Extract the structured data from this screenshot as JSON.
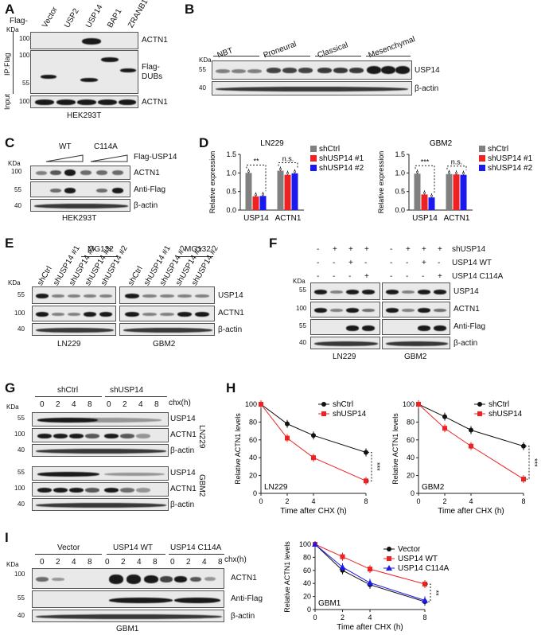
{
  "panels": {
    "A": {
      "label": "A",
      "flag_prefix": "Flag-",
      "lanes": [
        "Vector",
        "USP2",
        "USP14",
        "BAP1",
        "ZRANB1"
      ],
      "kda": "KDa",
      "side": [
        "IP:Flag",
        "Input"
      ],
      "rows": [
        "ACTN1",
        "Flag-\nDUBs",
        "ACTN1"
      ],
      "row_labels": {
        "r1": "ACTN1",
        "r2a": "Flag-",
        "r2b": "DUBs",
        "r3": "ACTN1"
      },
      "markers": {
        "m1": "100",
        "m2": "100",
        "m3": "55",
        "m4": "100"
      },
      "cell": "HEK293T"
    },
    "B": {
      "label": "B",
      "groups": [
        "NBT",
        "Proneural",
        "Classical",
        "Mesenchymal"
      ],
      "kda": "KDa",
      "markers": {
        "m1": "55",
        "m2": "40"
      },
      "rows": [
        "USP14",
        "β-actin"
      ]
    },
    "C": {
      "label": "C",
      "groups": [
        "WT",
        "C114A"
      ],
      "title": "Flag-USP14",
      "kda": "KDa",
      "markers": {
        "m1": "100",
        "m2": "55",
        "m3": "40"
      },
      "rows": [
        "ACTN1",
        "Anti-Flag",
        "β-actin"
      ],
      "cell": "HEK293T"
    },
    "D": {
      "label": "D"
    },
    "E": {
      "label": "E",
      "lanes_left": [
        "shCtrl",
        "shUSP14 #1",
        "shUSP14 #2",
        "shUSP14 #1",
        "shUSP14 #2"
      ],
      "lanes_right": [
        "shCtrl",
        "shUSP14 #1",
        "shUSP14 #2",
        "shUSP14 #1",
        "shUSP14 #2"
      ],
      "mg132": "MG132",
      "kda": "KDa",
      "markers": {
        "m1": "55",
        "m2": "100",
        "m3": "40"
      },
      "rows": [
        "USP14",
        "ACTN1",
        "β-actin"
      ],
      "cells": [
        "LN229",
        "GBM2"
      ]
    },
    "F": {
      "label": "F",
      "conditions": [
        "shUSP14",
        "USP14 WT",
        "USP14 C114A"
      ],
      "signs": [
        [
          "-",
          "+",
          "+",
          "+",
          "-",
          "+",
          "+",
          "+"
        ],
        [
          "-",
          "-",
          "+",
          "-",
          "-",
          "-",
          "+",
          "-"
        ],
        [
          "-",
          "-",
          "-",
          "+",
          "-",
          "-",
          "-",
          "+"
        ]
      ],
      "kda": "KDa",
      "markers": {
        "m1": "55",
        "m2": "100",
        "m3": "55",
        "m4": "40"
      },
      "rows": [
        "USP14",
        "ACTN1",
        "Anti-Flag",
        "β-actin"
      ],
      "cells": [
        "LN229",
        "GBM2"
      ]
    },
    "G": {
      "label": "G",
      "groups": [
        "shCtrl",
        "shUSP14"
      ],
      "chx": "chx(h)",
      "times": [
        "0",
        "2",
        "4",
        "8",
        "0",
        "2",
        "4",
        "8"
      ],
      "kda": "KDa",
      "markers": {
        "m1": "55",
        "m2": "100",
        "m3": "40",
        "m4": "55",
        "m5": "100",
        "m6": "40"
      },
      "rows": [
        "USP14",
        "ACTN1",
        "β-actin",
        "USP14",
        "ACTN1",
        "β-actin"
      ],
      "cells": [
        "LN229",
        "GBM2"
      ]
    },
    "H": {
      "label": "H"
    },
    "I": {
      "label": "I",
      "groups": [
        "Vector",
        "USP14 WT",
        "USP14 C114A"
      ],
      "chx": "chx(h)",
      "times": [
        "0",
        "2",
        "4",
        "8",
        "0",
        "2",
        "4",
        "8",
        "0",
        "2",
        "4",
        "8"
      ],
      "kda": "KDa",
      "markers": {
        "m1": "100",
        "m2": "55",
        "m3": "40"
      },
      "rows": [
        "ACTN1",
        "Anti-Flag",
        "β-actin"
      ],
      "cell": "GBM1"
    }
  },
  "chart_data": [
    {
      "id": "D-LN229",
      "type": "bar",
      "title": "LN229",
      "ylabel": "Relative expression",
      "categories": [
        "USP14",
        "ACTN1"
      ],
      "yticks": [
        "0.0",
        "0.5",
        "1.0",
        "1.5"
      ],
      "ylim": [
        0,
        1.5
      ],
      "series": [
        {
          "name": "shCtrl",
          "color": "#808080",
          "values": [
            1.0,
            1.06
          ]
        },
        {
          "name": "shUSP14 #1",
          "color": "#ee2222",
          "values": [
            0.37,
            0.95
          ]
        },
        {
          "name": "shUSP14 #2",
          "color": "#1a1aee",
          "values": [
            0.38,
            0.99
          ]
        }
      ],
      "sig": [
        "**",
        "n.s."
      ]
    },
    {
      "id": "D-GBM2",
      "type": "bar",
      "title": "GBM2",
      "ylabel": "Relative expression",
      "categories": [
        "USP14",
        "ACTN1"
      ],
      "yticks": [
        "0.0",
        "0.5",
        "1.0",
        "1.5"
      ],
      "ylim": [
        0,
        1.5
      ],
      "series": [
        {
          "name": "shCtrl",
          "color": "#808080",
          "values": [
            0.98,
            0.97
          ]
        },
        {
          "name": "shUSP14 #1",
          "color": "#ee2222",
          "values": [
            0.42,
            0.96
          ]
        },
        {
          "name": "shUSP14 #2",
          "color": "#1a1aee",
          "values": [
            0.34,
            0.95
          ]
        }
      ],
      "sig": [
        "***",
        "n.s."
      ]
    },
    {
      "id": "H-LN229",
      "type": "line",
      "annotation": "LN229",
      "xlabel": "Time after CHX (h)",
      "ylabel": "Relative ACTN1 levels",
      "x": [
        0,
        2,
        4,
        8
      ],
      "xticks": [
        "0",
        "2",
        "4",
        "8"
      ],
      "yticks": [
        "0",
        "20",
        "40",
        "60",
        "80",
        "100"
      ],
      "ylim": [
        0,
        100
      ],
      "series": [
        {
          "name": "shCtrl",
          "color": "#111111",
          "marker": "circle",
          "values": [
            100,
            78,
            65,
            46
          ]
        },
        {
          "name": "shUSP14",
          "color": "#ee2222",
          "marker": "square",
          "values": [
            100,
            62,
            40,
            14
          ]
        }
      ],
      "sig": "***"
    },
    {
      "id": "H-GBM2",
      "type": "line",
      "annotation": "GBM2",
      "xlabel": "Time after CHX (h)",
      "ylabel": "Relative ACTN1 levels",
      "x": [
        0,
        2,
        4,
        8
      ],
      "xticks": [
        "0",
        "2",
        "4",
        "8"
      ],
      "yticks": [
        "0",
        "20",
        "40",
        "60",
        "80",
        "100"
      ],
      "ylim": [
        0,
        100
      ],
      "series": [
        {
          "name": "shCtrl",
          "color": "#111111",
          "marker": "circle",
          "values": [
            100,
            86,
            71,
            53
          ]
        },
        {
          "name": "shUSP14",
          "color": "#ee2222",
          "marker": "square",
          "values": [
            100,
            73,
            53,
            16
          ]
        }
      ],
      "sig": "***"
    },
    {
      "id": "I-GBM1",
      "type": "line",
      "annotation": "GBM1",
      "xlabel": "Time after CHX (h)",
      "ylabel": "Relative ACTN1 levels",
      "x": [
        0,
        2,
        4,
        8
      ],
      "xticks": [
        "0",
        "2",
        "4",
        "8"
      ],
      "yticks": [
        "0",
        "20",
        "40",
        "60",
        "80",
        "100"
      ],
      "ylim": [
        0,
        100
      ],
      "series": [
        {
          "name": "Vector",
          "color": "#111111",
          "marker": "circle",
          "values": [
            100,
            60,
            38,
            12
          ]
        },
        {
          "name": "USP14 WT",
          "color": "#ee2222",
          "marker": "square",
          "values": [
            100,
            81,
            62,
            39
          ]
        },
        {
          "name": "USP14 C114A",
          "color": "#1a1aee",
          "marker": "triangle",
          "values": [
            100,
            65,
            41,
            14
          ]
        }
      ],
      "sig": "**"
    }
  ]
}
